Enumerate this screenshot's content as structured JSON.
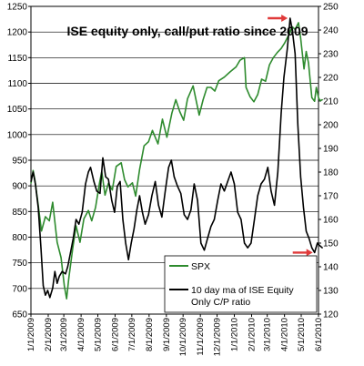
{
  "chart_data": {
    "type": "line",
    "title": "ISE equity only, call/put ratio since 2009",
    "grid": true,
    "left_axis": {
      "ylim": [
        650,
        1250
      ],
      "ticks": [
        "650",
        "700",
        "750",
        "800",
        "850",
        "900",
        "950",
        "1000",
        "1050",
        "1100",
        "1150",
        "1200",
        "1250"
      ]
    },
    "right_axis": {
      "ylim": [
        120,
        250
      ],
      "ticks": [
        "120",
        "130",
        "140",
        "150",
        "160",
        "170",
        "180",
        "190",
        "200",
        "210",
        "220",
        "230",
        "240",
        "250"
      ]
    },
    "x_axis": {
      "range": [
        "2009-01-01",
        "2010-06-01"
      ],
      "ticks": [
        {
          "label": "1/1/2009",
          "date": "2009-01-01"
        },
        {
          "label": "2/1/2009",
          "date": "2009-02-01"
        },
        {
          "label": "3/1/2009",
          "date": "2009-03-01"
        },
        {
          "label": "4/1/2009",
          "date": "2009-04-01"
        },
        {
          "label": "5/1/2009",
          "date": "2009-05-01"
        },
        {
          "label": "6/1/2009",
          "date": "2009-06-01"
        },
        {
          "label": "7/1/2009",
          "date": "2009-07-01"
        },
        {
          "label": "8/1/2009",
          "date": "2009-08-01"
        },
        {
          "label": "9/1/2009",
          "date": "2009-09-01"
        },
        {
          "label": "10/1/2009",
          "date": "2009-10-01"
        },
        {
          "label": "11/1/2009",
          "date": "2009-11-01"
        },
        {
          "label": "12/1/2009",
          "date": "2009-12-01"
        },
        {
          "label": "1/1/2010",
          "date": "2010-01-01"
        },
        {
          "label": "2/1/2010",
          "date": "2010-02-01"
        },
        {
          "label": "3/1/2010",
          "date": "2010-03-01"
        },
        {
          "label": "4/1/2010",
          "date": "2010-04-01"
        },
        {
          "label": "5/1/2010",
          "date": "2010-05-01"
        },
        {
          "label": "6/1/2010",
          "date": "2010-06-01"
        }
      ]
    },
    "legend": {
      "placement": "bottom-right",
      "entries": [
        {
          "label": "SPX",
          "series": "spx"
        },
        {
          "label": "10 day ma of ISE Equity Only C/P ratio",
          "series": "cp"
        }
      ]
    },
    "series": [
      {
        "id": "spx",
        "name": "SPX",
        "axis": "left",
        "color": "#2e8b2e",
        "points": [
          [
            "2009-01-01",
            905
          ],
          [
            "2009-01-05",
            930
          ],
          [
            "2009-01-08",
            912
          ],
          [
            "2009-01-13",
            872
          ],
          [
            "2009-01-20",
            812
          ],
          [
            "2009-01-27",
            840
          ],
          [
            "2009-02-03",
            832
          ],
          [
            "2009-02-09",
            868
          ],
          [
            "2009-02-17",
            790
          ],
          [
            "2009-02-24",
            760
          ],
          [
            "2009-03-02",
            705
          ],
          [
            "2009-03-06",
            680
          ],
          [
            "2009-03-10",
            720
          ],
          [
            "2009-03-17",
            778
          ],
          [
            "2009-03-23",
            822
          ],
          [
            "2009-03-30",
            790
          ],
          [
            "2009-04-06",
            836
          ],
          [
            "2009-04-14",
            852
          ],
          [
            "2009-04-20",
            832
          ],
          [
            "2009-04-27",
            858
          ],
          [
            "2009-05-04",
            905
          ],
          [
            "2009-05-08",
            928
          ],
          [
            "2009-05-14",
            882
          ],
          [
            "2009-05-20",
            905
          ],
          [
            "2009-05-27",
            892
          ],
          [
            "2009-06-03",
            938
          ],
          [
            "2009-06-12",
            945
          ],
          [
            "2009-06-18",
            912
          ],
          [
            "2009-06-24",
            898
          ],
          [
            "2009-07-02",
            906
          ],
          [
            "2009-07-08",
            880
          ],
          [
            "2009-07-15",
            932
          ],
          [
            "2009-07-23",
            978
          ],
          [
            "2009-07-31",
            986
          ],
          [
            "2009-08-07",
            1008
          ],
          [
            "2009-08-17",
            982
          ],
          [
            "2009-08-25",
            1030
          ],
          [
            "2009-09-02",
            995
          ],
          [
            "2009-09-11",
            1042
          ],
          [
            "2009-09-18",
            1068
          ],
          [
            "2009-09-25",
            1045
          ],
          [
            "2009-10-02",
            1028
          ],
          [
            "2009-10-09",
            1070
          ],
          [
            "2009-10-19",
            1095
          ],
          [
            "2009-10-30",
            1038
          ],
          [
            "2009-11-06",
            1068
          ],
          [
            "2009-11-13",
            1092
          ],
          [
            "2009-11-20",
            1092
          ],
          [
            "2009-11-27",
            1085
          ],
          [
            "2009-12-04",
            1105
          ],
          [
            "2009-12-14",
            1112
          ],
          [
            "2009-12-24",
            1122
          ],
          [
            "2010-01-04",
            1132
          ],
          [
            "2010-01-11",
            1145
          ],
          [
            "2010-01-19",
            1150
          ],
          [
            "2010-01-22",
            1092
          ],
          [
            "2010-01-29",
            1074
          ],
          [
            "2010-02-05",
            1064
          ],
          [
            "2010-02-12",
            1078
          ],
          [
            "2010-02-19",
            1108
          ],
          [
            "2010-02-26",
            1104
          ],
          [
            "2010-03-05",
            1136
          ],
          [
            "2010-03-12",
            1150
          ],
          [
            "2010-03-19",
            1160
          ],
          [
            "2010-03-26",
            1168
          ],
          [
            "2010-04-01",
            1178
          ],
          [
            "2010-04-09",
            1195
          ],
          [
            "2010-04-15",
            1210
          ],
          [
            "2010-04-20",
            1205
          ],
          [
            "2010-04-26",
            1218
          ],
          [
            "2010-04-30",
            1188
          ],
          [
            "2010-05-06",
            1128
          ],
          [
            "2010-05-10",
            1162
          ],
          [
            "2010-05-14",
            1140
          ],
          [
            "2010-05-20",
            1072
          ],
          [
            "2010-05-25",
            1065
          ],
          [
            "2010-05-28",
            1092
          ],
          [
            "2010-06-01",
            1072
          ],
          [
            "2010-06-04",
            1066
          ],
          [
            "2010-06-08",
            1068
          ]
        ]
      },
      {
        "id": "cp",
        "name": "10 day ma of ISE Equity Only C/P ratio",
        "axis": "right",
        "color": "#000000",
        "points": [
          [
            "2009-01-01",
            176
          ],
          [
            "2009-01-05",
            180
          ],
          [
            "2009-01-09",
            175
          ],
          [
            "2009-01-14",
            165
          ],
          [
            "2009-01-19",
            148
          ],
          [
            "2009-01-23",
            132
          ],
          [
            "2009-01-27",
            128
          ],
          [
            "2009-01-31",
            130
          ],
          [
            "2009-02-04",
            127
          ],
          [
            "2009-02-09",
            131
          ],
          [
            "2009-02-13",
            138
          ],
          [
            "2009-02-17",
            133
          ],
          [
            "2009-02-21",
            136
          ],
          [
            "2009-02-26",
            138
          ],
          [
            "2009-03-04",
            137
          ],
          [
            "2009-03-08",
            140
          ],
          [
            "2009-03-13",
            146
          ],
          [
            "2009-03-18",
            152
          ],
          [
            "2009-03-23",
            160
          ],
          [
            "2009-03-28",
            158
          ],
          [
            "2009-04-03",
            163
          ],
          [
            "2009-04-09",
            175
          ],
          [
            "2009-04-14",
            180
          ],
          [
            "2009-04-18",
            182
          ],
          [
            "2009-04-24",
            176
          ],
          [
            "2009-04-29",
            172
          ],
          [
            "2009-05-05",
            171
          ],
          [
            "2009-05-10",
            186
          ],
          [
            "2009-05-15",
            178
          ],
          [
            "2009-05-20",
            177
          ],
          [
            "2009-05-26",
            168
          ],
          [
            "2009-05-31",
            163
          ],
          [
            "2009-06-05",
            174
          ],
          [
            "2009-06-10",
            176
          ],
          [
            "2009-06-15",
            160
          ],
          [
            "2009-06-20",
            150
          ],
          [
            "2009-06-25",
            143
          ],
          [
            "2009-06-30",
            150
          ],
          [
            "2009-07-05",
            156
          ],
          [
            "2009-07-10",
            164
          ],
          [
            "2009-07-15",
            170
          ],
          [
            "2009-07-20",
            163
          ],
          [
            "2009-07-25",
            158
          ],
          [
            "2009-07-31",
            162
          ],
          [
            "2009-08-06",
            170
          ],
          [
            "2009-08-12",
            176
          ],
          [
            "2009-08-18",
            166
          ],
          [
            "2009-08-24",
            161
          ],
          [
            "2009-08-30",
            172
          ],
          [
            "2009-09-05",
            182
          ],
          [
            "2009-09-10",
            185
          ],
          [
            "2009-09-15",
            178
          ],
          [
            "2009-09-21",
            174
          ],
          [
            "2009-09-27",
            171
          ],
          [
            "2009-10-03",
            162
          ],
          [
            "2009-10-09",
            160
          ],
          [
            "2009-10-15",
            164
          ],
          [
            "2009-10-21",
            175
          ],
          [
            "2009-10-27",
            168
          ],
          [
            "2009-11-02",
            150
          ],
          [
            "2009-11-08",
            147
          ],
          [
            "2009-11-14",
            152
          ],
          [
            "2009-11-20",
            157
          ],
          [
            "2009-11-26",
            160
          ],
          [
            "2009-12-02",
            168
          ],
          [
            "2009-12-08",
            175
          ],
          [
            "2009-12-14",
            172
          ],
          [
            "2009-12-20",
            176
          ],
          [
            "2009-12-26",
            180
          ],
          [
            "2010-01-01",
            175
          ],
          [
            "2010-01-07",
            163
          ],
          [
            "2010-01-13",
            160
          ],
          [
            "2010-01-19",
            150
          ],
          [
            "2010-01-25",
            148
          ],
          [
            "2010-01-31",
            150
          ],
          [
            "2010-02-06",
            160
          ],
          [
            "2010-02-12",
            170
          ],
          [
            "2010-02-18",
            175
          ],
          [
            "2010-02-24",
            177
          ],
          [
            "2010-03-02",
            182
          ],
          [
            "2010-03-08",
            172
          ],
          [
            "2010-03-14",
            166
          ],
          [
            "2010-03-20",
            180
          ],
          [
            "2010-03-26",
            205
          ],
          [
            "2010-03-31",
            220
          ],
          [
            "2010-04-06",
            232
          ],
          [
            "2010-04-11",
            245
          ],
          [
            "2010-04-15",
            240
          ],
          [
            "2010-04-20",
            230
          ],
          [
            "2010-04-25",
            200
          ],
          [
            "2010-04-30",
            178
          ],
          [
            "2010-05-05",
            165
          ],
          [
            "2010-05-10",
            155
          ],
          [
            "2010-05-15",
            152
          ],
          [
            "2010-05-20",
            148
          ],
          [
            "2010-05-25",
            146
          ],
          [
            "2010-05-30",
            150
          ],
          [
            "2010-06-03",
            149
          ],
          [
            "2010-06-08",
            148
          ]
        ]
      }
    ],
    "annotations": [
      {
        "type": "arrow",
        "color": "#e03a3a",
        "description": "red arrow pointing right at the 2010 peak",
        "near_date": "2010-04-10",
        "near_value": 245,
        "axis": "right"
      },
      {
        "type": "arrow",
        "color": "#e03a3a",
        "description": "red arrow pointing right at the recent low",
        "near_date": "2010-05-25",
        "near_value": 146,
        "axis": "right"
      }
    ]
  }
}
